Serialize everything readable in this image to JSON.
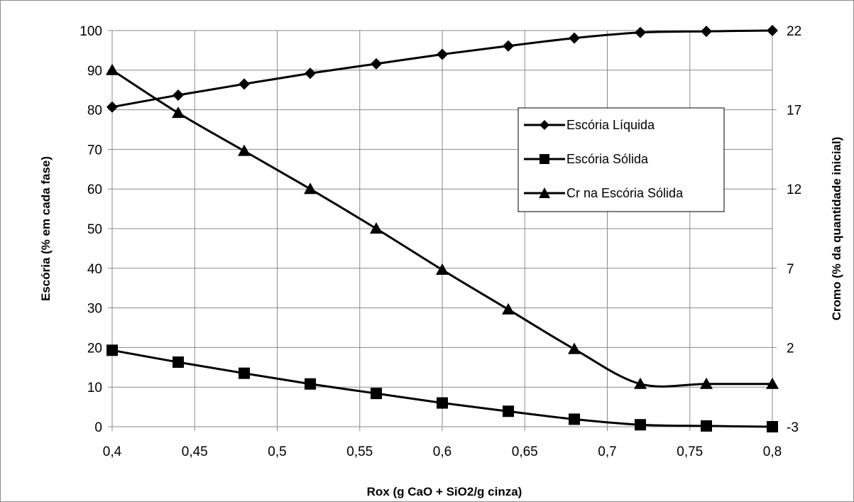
{
  "chart_data": {
    "type": "line",
    "xlabel": "Rox (g CaO + SiO2/g cinza)",
    "ylabel": "Escória (% em cada fase)",
    "y2label": "Cromo (% da quantidade inicial)",
    "x_ticks": [
      "0,4",
      "0,45",
      "0,5",
      "0,55",
      "0,6",
      "0,65",
      "0,7",
      "0,75",
      "0,8"
    ],
    "y_ticks": [
      "0",
      "10",
      "20",
      "30",
      "40",
      "50",
      "60",
      "70",
      "80",
      "90",
      "100"
    ],
    "y2_ticks": [
      "-3",
      "2",
      "7",
      "12",
      "17",
      "22"
    ],
    "xlim": [
      0.4,
      0.8
    ],
    "ylim": [
      0,
      100
    ],
    "y2lim": [
      -3,
      22
    ],
    "grid": true,
    "legend_position": "right-center",
    "series": [
      {
        "name": "Escória Líquida",
        "marker": "diamond",
        "axis": "left",
        "x": [
          0.4,
          0.44,
          0.48,
          0.52,
          0.56,
          0.6,
          0.64,
          0.68,
          0.72,
          0.76,
          0.8
        ],
        "y": [
          80.7,
          83.7,
          86.5,
          89.2,
          91.6,
          94.0,
          96.1,
          98.1,
          99.5,
          99.8,
          100.0
        ]
      },
      {
        "name": "Escória Sólida",
        "marker": "square",
        "axis": "left",
        "x": [
          0.4,
          0.44,
          0.48,
          0.52,
          0.56,
          0.6,
          0.64,
          0.68,
          0.72,
          0.76,
          0.8
        ],
        "y": [
          19.3,
          16.3,
          13.5,
          10.8,
          8.4,
          6.0,
          3.9,
          1.9,
          0.5,
          0.2,
          0.0
        ]
      },
      {
        "name": "Cr na Escória Sólida",
        "marker": "triangle",
        "axis": "right",
        "x": [
          0.4,
          0.44,
          0.48,
          0.52,
          0.56,
          0.6,
          0.64,
          0.68,
          0.72,
          0.76,
          0.8
        ],
        "y": [
          19.5,
          16.8,
          14.4,
          12.0,
          9.5,
          6.9,
          4.4,
          1.9,
          -0.3,
          -0.3,
          -0.3
        ]
      }
    ]
  }
}
